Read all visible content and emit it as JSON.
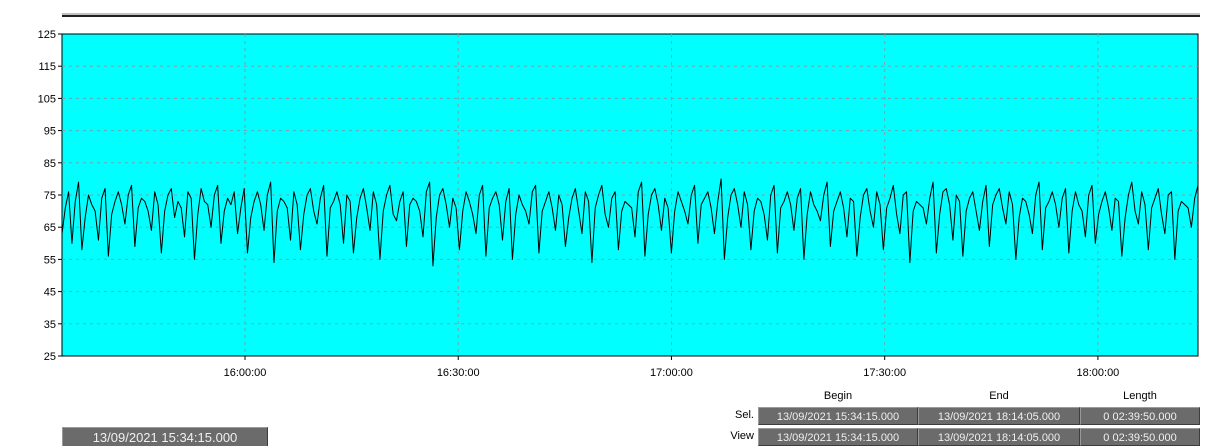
{
  "chart_data": {
    "type": "line",
    "xlabel": "",
    "ylabel": "",
    "ylim": [
      25,
      125
    ],
    "yticks": [
      25,
      35,
      45,
      55,
      65,
      75,
      85,
      95,
      105,
      115,
      125
    ],
    "x_start": "15:34:15",
    "x_end": "18:14:05",
    "xticks": [
      "16:00:00",
      "16:30:00",
      "17:00:00",
      "17:30:00",
      "18:00:00"
    ],
    "grid": true,
    "plot_background": "#00ffff",
    "line_color": "#000000",
    "series": [
      {
        "values": [
          63,
          71,
          76,
          60,
          73,
          79,
          58,
          68,
          75,
          72,
          70,
          61,
          74,
          77,
          56,
          69,
          73,
          76,
          72,
          66,
          75,
          78,
          59,
          71,
          74,
          73,
          70,
          64,
          76,
          72,
          57,
          70,
          75,
          77,
          68,
          73,
          71,
          62,
          76,
          74,
          55,
          69,
          77,
          73,
          72,
          65,
          75,
          78,
          60,
          70,
          74,
          72,
          76,
          63,
          71,
          77,
          57,
          68,
          73,
          76,
          72,
          64,
          75,
          79,
          54,
          70,
          74,
          73,
          71,
          61,
          76,
          72,
          58,
          69,
          75,
          77,
          70,
          66,
          74,
          78,
          56,
          71,
          73,
          76,
          72,
          60,
          75,
          73,
          57,
          68,
          74,
          77,
          71,
          64,
          76,
          72,
          55,
          70,
          75,
          78,
          69,
          67,
          73,
          76,
          59,
          72,
          74,
          73,
          70,
          62,
          76,
          79,
          53,
          68,
          75,
          77,
          72,
          65,
          74,
          71,
          58,
          70,
          76,
          73,
          69,
          63,
          75,
          78,
          56,
          71,
          74,
          76,
          72,
          61,
          73,
          77,
          55,
          69,
          75,
          72,
          70,
          66,
          76,
          78,
          57,
          70,
          73,
          76,
          71,
          64,
          75,
          72,
          59,
          68,
          74,
          77,
          70,
          63,
          76,
          73,
          54,
          71,
          75,
          78,
          69,
          65,
          74,
          76,
          58,
          70,
          73,
          72,
          71,
          62,
          76,
          79,
          56,
          69,
          75,
          77,
          72,
          64,
          74,
          71,
          57,
          70,
          76,
          73,
          70,
          66,
          75,
          78,
          60,
          72,
          74,
          76,
          71,
          63,
          73,
          80,
          55,
          68,
          75,
          77,
          72,
          65,
          76,
          72,
          58,
          70,
          74,
          73,
          69,
          61,
          75,
          78,
          57,
          71,
          73,
          76,
          72,
          64,
          74,
          77,
          55,
          69,
          76,
          72,
          70,
          67,
          75,
          79,
          59,
          70,
          73,
          76,
          71,
          62,
          74,
          73,
          56,
          68,
          75,
          77,
          70,
          65,
          76,
          72,
          58,
          71,
          74,
          78,
          69,
          63,
          75,
          76,
          54,
          70,
          73,
          72,
          71,
          66,
          74,
          79,
          57,
          69,
          76,
          77,
          72,
          61,
          75,
          73,
          56,
          70,
          74,
          76,
          70,
          64,
          73,
          78,
          59,
          72,
          75,
          77,
          71,
          66,
          76,
          72,
          55,
          68,
          74,
          73,
          69,
          63,
          75,
          79,
          58,
          71,
          73,
          76,
          72,
          65,
          74,
          77,
          57,
          70,
          76,
          72,
          70,
          62,
          75,
          78,
          60,
          69,
          73,
          76,
          71,
          64,
          74,
          73,
          56,
          68,
          75,
          79,
          70,
          66,
          76,
          72,
          58,
          71,
          74,
          77,
          69,
          63,
          75,
          76,
          55,
          70,
          73,
          72,
          71,
          65,
          74,
          78
        ]
      }
    ]
  },
  "selection_panel": {
    "headers": {
      "begin": "Begin",
      "end": "End",
      "length": "Length"
    },
    "rows": [
      {
        "label": "Sel.",
        "begin": "13/09/2021 15:34:15.000",
        "end": "13/09/2021 18:14:05.000",
        "length": "0 02:39:50.000"
      },
      {
        "label": "View",
        "begin": "13/09/2021 15:34:15.000",
        "end": "13/09/2021 18:14:05.000",
        "length": "0 02:39:50.000"
      }
    ]
  },
  "cursor_time": "13/09/2021 15:34:15.000"
}
